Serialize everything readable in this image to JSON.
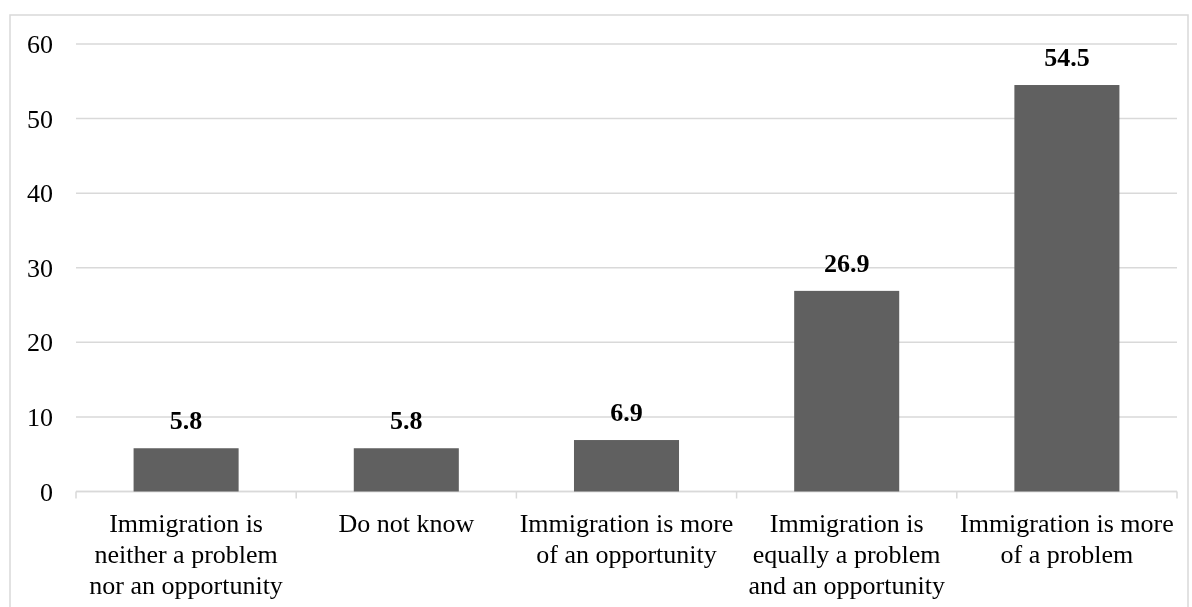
{
  "chart_data": {
    "type": "bar",
    "categories": [
      "Immigration is neither a problem nor an opportunity",
      "Do not know",
      "Immigration is more of an opportunity",
      "Immigration is equally a problem and an opportunity",
      "Immigration is more of a problem"
    ],
    "values": [
      5.8,
      5.8,
      6.9,
      26.9,
      54.5
    ],
    "color": "#606060",
    "ylim": [
      0,
      60
    ],
    "yticks": [
      0,
      10,
      20,
      30,
      40,
      50,
      60
    ],
    "grid": "y",
    "data_labels": true
  }
}
